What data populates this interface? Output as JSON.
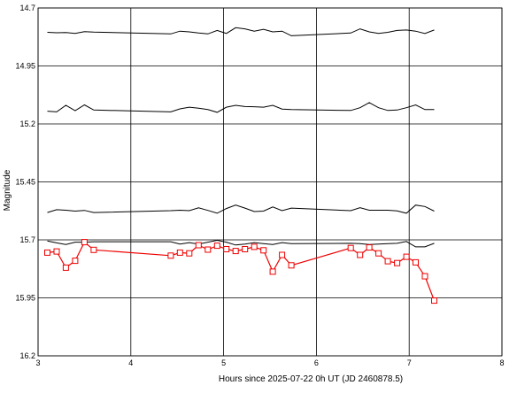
{
  "chart_data": {
    "type": "line",
    "xlabel": "Hours since 2025-07-22 0h UT (JD 2460878.5)",
    "ylabel": "Magnitude",
    "xlim": [
      3,
      8
    ],
    "ylim": [
      16.2,
      14.7
    ],
    "y_inverted": true,
    "grid": true,
    "x_ticks": [
      "3",
      "4",
      "5",
      "6",
      "7",
      "8"
    ],
    "y_ticks": [
      "14.7",
      "14.95",
      "15.2",
      "15.45",
      "15.7",
      "15.95",
      "16.2"
    ],
    "colors": {
      "target": "#ee0000",
      "comparison": "#000000",
      "grid": "#000000",
      "background": "#ffffff"
    },
    "series": [
      {
        "role": "comparison",
        "marker": "none",
        "color": "#000000",
        "x": [
          3.1,
          3.2,
          3.3,
          3.4,
          3.5,
          3.6,
          4.43,
          4.53,
          4.63,
          4.73,
          4.83,
          4.93,
          5.03,
          5.13,
          5.23,
          5.33,
          5.43,
          5.53,
          5.63,
          5.73,
          6.37,
          6.47,
          6.57,
          6.67,
          6.77,
          6.87,
          6.97,
          7.07,
          7.17,
          7.27
        ],
        "y": [
          14.805,
          14.807,
          14.806,
          14.81,
          14.802,
          14.804,
          14.812,
          14.8,
          14.803,
          14.808,
          14.812,
          14.797,
          14.81,
          14.785,
          14.79,
          14.8,
          14.792,
          14.803,
          14.8,
          14.82,
          14.808,
          14.79,
          14.803,
          14.81,
          14.805,
          14.797,
          14.795,
          14.8,
          14.81,
          14.795
        ]
      },
      {
        "role": "comparison",
        "marker": "none",
        "color": "#000000",
        "x": [
          3.1,
          3.2,
          3.3,
          3.4,
          3.5,
          3.6,
          4.43,
          4.53,
          4.63,
          4.73,
          4.83,
          4.93,
          5.03,
          5.13,
          5.23,
          5.33,
          5.43,
          5.53,
          5.63,
          5.73,
          6.37,
          6.47,
          6.57,
          6.67,
          6.77,
          6.87,
          6.97,
          7.07,
          7.17,
          7.27
        ],
        "y": [
          15.145,
          15.148,
          15.12,
          15.143,
          15.118,
          15.14,
          15.148,
          15.135,
          15.128,
          15.132,
          15.138,
          15.15,
          15.128,
          15.12,
          15.125,
          15.126,
          15.128,
          15.12,
          15.136,
          15.138,
          15.142,
          15.13,
          15.108,
          15.13,
          15.142,
          15.14,
          15.13,
          15.118,
          15.138,
          15.138
        ]
      },
      {
        "role": "comparison",
        "marker": "none",
        "color": "#000000",
        "x": [
          3.1,
          3.2,
          3.3,
          3.4,
          3.5,
          3.6,
          4.43,
          4.53,
          4.63,
          4.73,
          4.83,
          4.93,
          5.03,
          5.13,
          5.23,
          5.33,
          5.43,
          5.53,
          5.63,
          5.73,
          6.37,
          6.47,
          6.57,
          6.67,
          6.77,
          6.87,
          6.97,
          7.07,
          7.17,
          7.27
        ],
        "y": [
          15.582,
          15.57,
          15.572,
          15.576,
          15.573,
          15.582,
          15.574,
          15.572,
          15.574,
          15.562,
          15.573,
          15.585,
          15.565,
          15.55,
          15.563,
          15.578,
          15.576,
          15.558,
          15.574,
          15.563,
          15.574,
          15.561,
          15.572,
          15.572,
          15.572,
          15.575,
          15.585,
          15.55,
          15.556,
          15.576
        ]
      },
      {
        "role": "comparison",
        "marker": "none",
        "color": "#000000",
        "x": [
          3.1,
          3.2,
          3.3,
          3.4,
          3.5,
          3.6,
          4.43,
          4.53,
          4.63,
          4.73,
          4.83,
          4.93,
          5.03,
          5.13,
          5.23,
          5.33,
          5.43,
          5.53,
          5.63,
          5.73,
          6.37,
          6.47,
          6.57,
          6.67,
          6.77,
          6.87,
          6.97,
          7.07,
          7.17,
          7.27
        ],
        "y": [
          15.705,
          15.713,
          15.72,
          15.71,
          15.71,
          15.708,
          15.708,
          15.718,
          15.712,
          15.718,
          15.71,
          15.702,
          15.71,
          15.722,
          15.718,
          15.712,
          15.716,
          15.72,
          15.712,
          15.716,
          15.715,
          15.716,
          15.72,
          15.718,
          15.716,
          15.715,
          15.707,
          15.73,
          15.73,
          15.715
        ]
      },
      {
        "role": "target",
        "marker": "square",
        "color": "#ee0000",
        "x": [
          3.1,
          3.2,
          3.3,
          3.4,
          3.5,
          3.6,
          4.43,
          4.53,
          4.63,
          4.73,
          4.83,
          4.93,
          5.03,
          5.13,
          5.23,
          5.33,
          5.43,
          5.53,
          5.63,
          5.73,
          6.37,
          6.47,
          6.57,
          6.67,
          6.77,
          6.87,
          6.97,
          7.07,
          7.17,
          7.27
        ],
        "y": [
          15.755,
          15.75,
          15.82,
          15.79,
          15.71,
          15.743,
          15.768,
          15.755,
          15.758,
          15.723,
          15.742,
          15.725,
          15.74,
          15.748,
          15.74,
          15.73,
          15.745,
          15.837,
          15.765,
          15.81,
          15.735,
          15.765,
          15.733,
          15.758,
          15.792,
          15.8,
          15.773,
          15.797,
          15.857,
          15.962
        ]
      }
    ]
  }
}
